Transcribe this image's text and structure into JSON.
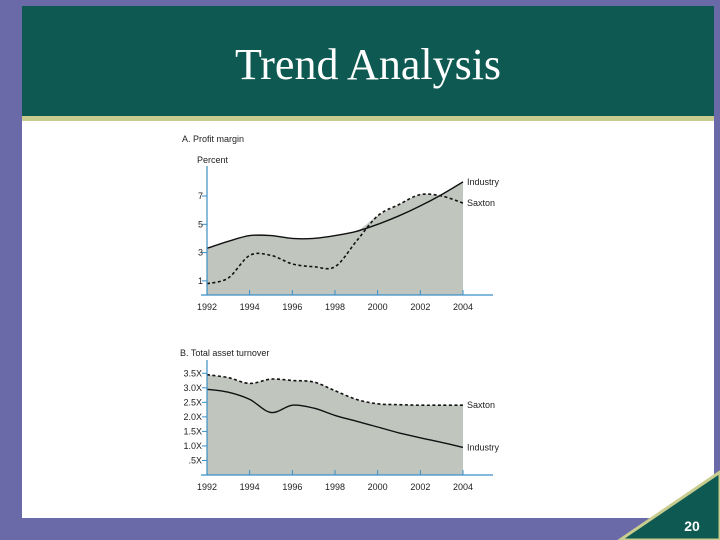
{
  "slide": {
    "title": "Trend Analysis",
    "page_number": "20",
    "colors": {
      "header": "#0e5a52",
      "frame": "#6b6aa8",
      "band": "#c9cc8f",
      "fill": "#c0c6be",
      "axis": "#3a8fc9"
    }
  },
  "chart_data": [
    {
      "type": "area",
      "title": "A. Profit margin",
      "ylabel": "Percent",
      "x": [
        1992,
        1993,
        1994,
        1995,
        1996,
        1997,
        1998,
        1999,
        2000,
        2001,
        2002,
        2003,
        2004
      ],
      "xticks": [
        1992,
        1994,
        1996,
        1998,
        2000,
        2002,
        2004
      ],
      "xtick_labels": [
        "1992",
        "1994",
        "1996",
        "1998",
        "2000",
        "2002",
        "2004"
      ],
      "yticks": [
        1,
        3,
        5,
        7
      ],
      "ytick_labels": [
        "1",
        "3",
        "5",
        "7"
      ],
      "ylim": [
        0,
        8.7
      ],
      "grid": false,
      "series": [
        {
          "name": "Industry",
          "style": "solid",
          "values": [
            3.3,
            3.8,
            4.2,
            4.2,
            4.0,
            4.0,
            4.2,
            4.5,
            5.0,
            5.6,
            6.3,
            7.1,
            8.0
          ]
        },
        {
          "name": "Saxton",
          "style": "dashed",
          "values": [
            0.8,
            1.2,
            2.8,
            2.8,
            2.2,
            2.0,
            2.0,
            3.8,
            5.6,
            6.4,
            7.1,
            7.0,
            6.5
          ]
        }
      ]
    },
    {
      "type": "area",
      "title": "B. Total asset turnover",
      "ylabel": "",
      "x": [
        1992,
        1993,
        1994,
        1995,
        1996,
        1997,
        1998,
        1999,
        2000,
        2001,
        2002,
        2003,
        2004
      ],
      "xticks": [
        1992,
        1994,
        1996,
        1998,
        2000,
        2002,
        2004
      ],
      "xtick_labels": [
        "1992",
        "1994",
        "1996",
        "1998",
        "2000",
        "2002",
        "2004"
      ],
      "yticks": [
        0.5,
        1.0,
        1.5,
        2.0,
        2.5,
        3.0,
        3.5
      ],
      "ytick_labels": [
        ".5X",
        "1.0X",
        "1.5X",
        "2.0X",
        "2.5X",
        "3.0X",
        "3.5X"
      ],
      "ylim": [
        0,
        3.75
      ],
      "grid": false,
      "series": [
        {
          "name": "Saxton",
          "style": "dashed",
          "values": [
            3.45,
            3.35,
            3.15,
            3.3,
            3.25,
            3.2,
            2.9,
            2.6,
            2.45,
            2.42,
            2.4,
            2.4,
            2.4
          ]
        },
        {
          "name": "Industry",
          "style": "solid",
          "values": [
            2.95,
            2.85,
            2.6,
            2.15,
            2.4,
            2.3,
            2.05,
            1.85,
            1.65,
            1.45,
            1.28,
            1.12,
            0.95
          ]
        }
      ]
    }
  ]
}
